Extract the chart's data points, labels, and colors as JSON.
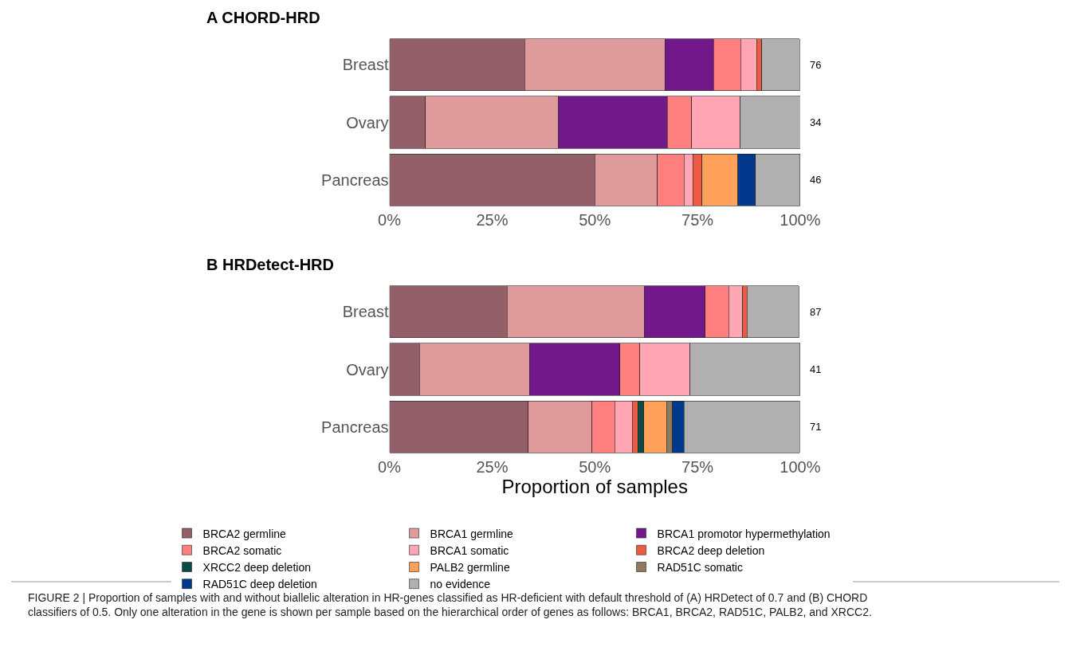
{
  "chart_data": [
    {
      "type": "bar",
      "title": "A CHORD-HRD",
      "orientation": "horizontal",
      "stacked": true,
      "categories": [
        "Breast",
        "Ovary",
        "Pancreas"
      ],
      "xlim": [
        0,
        100
      ],
      "xticks": [
        {
          "value": 0,
          "label": "0%"
        },
        {
          "value": 25,
          "label": "25%"
        },
        {
          "value": 50,
          "label": "50%"
        },
        {
          "value": 75,
          "label": "75%"
        },
        {
          "value": 100,
          "label": "100%"
        }
      ],
      "annotations": [
        "76",
        "34",
        "46"
      ],
      "series": [
        {
          "color": "#935f68",
          "values": [
            32.9,
            8.8,
            50.0
          ]
        },
        {
          "color": "#df9b9c",
          "values": [
            34.2,
            32.4,
            15.2
          ]
        },
        {
          "color": "#72188b",
          "values": [
            11.8,
            26.5,
            null
          ]
        },
        {
          "color": "#ff7f7e",
          "values": [
            6.6,
            5.9,
            6.5
          ]
        },
        {
          "color": "#ffa5b4",
          "values": [
            3.9,
            11.8,
            2.2
          ]
        },
        {
          "color": "#ea5b45",
          "values": [
            1.3,
            null,
            2.2
          ]
        },
        {
          "color": "#ffa05b",
          "values": [
            null,
            null,
            8.7
          ]
        },
        {
          "color": "#03398d",
          "values": [
            null,
            null,
            4.3
          ]
        },
        {
          "color": "#b0b0b0",
          "values": [
            9.2,
            14.7,
            10.9
          ]
        }
      ]
    },
    {
      "type": "bar",
      "title": "B HRDetect-HRD",
      "orientation": "horizontal",
      "stacked": true,
      "categories": [
        "Breast",
        "Ovary",
        "Pancreas"
      ],
      "xlabel": "Proportion of samples",
      "xlim": [
        0,
        100
      ],
      "xticks": [
        {
          "value": 0,
          "label": "0%"
        },
        {
          "value": 25,
          "label": "25%"
        },
        {
          "value": 50,
          "label": "50%"
        },
        {
          "value": 75,
          "label": "75%"
        },
        {
          "value": 100,
          "label": "100%"
        }
      ],
      "legend": "bottom",
      "annotations": [
        "87",
        "41",
        "71",
        "FIGURE 2 | Proportion of samples with and without biallelic alteration in HR-genes classified as HR-deficient with default threshold of (A) HRDetect of 0.7 and (B) CHORD classifiers of 0.5. Only one alteration in the gene is shown per sample based on the hierarchical order of genes as follows: BRCA1, BRCA2, RAD51C, PALB2, and XRCC2."
      ],
      "series": [
        {
          "name": "BRCA2 germline",
          "color": "#935f68",
          "values": [
            28.7,
            7.3,
            33.8
          ]
        },
        {
          "name": "BRCA1 germline",
          "color": "#df9b9c",
          "values": [
            33.3,
            26.8,
            15.5
          ]
        },
        {
          "name": "BRCA1 promotor hypermethylation",
          "color": "#72188b",
          "values": [
            14.9,
            22.0,
            null
          ]
        },
        {
          "name": "BRCA2 somatic",
          "color": "#ff7f7e",
          "values": [
            5.7,
            4.9,
            5.6
          ]
        },
        {
          "name": "BRCA1 somatic",
          "color": "#ffa5b4",
          "values": [
            3.4,
            12.2,
            4.2
          ]
        },
        {
          "name": "BRCA2 deep deletion",
          "color": "#ea5b45",
          "values": [
            1.1,
            null,
            1.4
          ]
        },
        {
          "name": "XRCC2 deep deletion",
          "color": "#0c4a44",
          "values": [
            null,
            null,
            1.4
          ]
        },
        {
          "name": "PALB2 germline",
          "color": "#ffa05b",
          "values": [
            null,
            null,
            5.6
          ]
        },
        {
          "name": "RAD51C somatic",
          "color": "#8e7a5f",
          "values": [
            null,
            null,
            1.4
          ]
        },
        {
          "name": "RAD51C deep deletion",
          "color": "#03398d",
          "values": [
            null,
            null,
            2.8
          ]
        },
        {
          "name": "no evidence",
          "color": "#b0b0b0",
          "values": [
            12.6,
            26.8,
            28.2
          ]
        }
      ]
    }
  ]
}
